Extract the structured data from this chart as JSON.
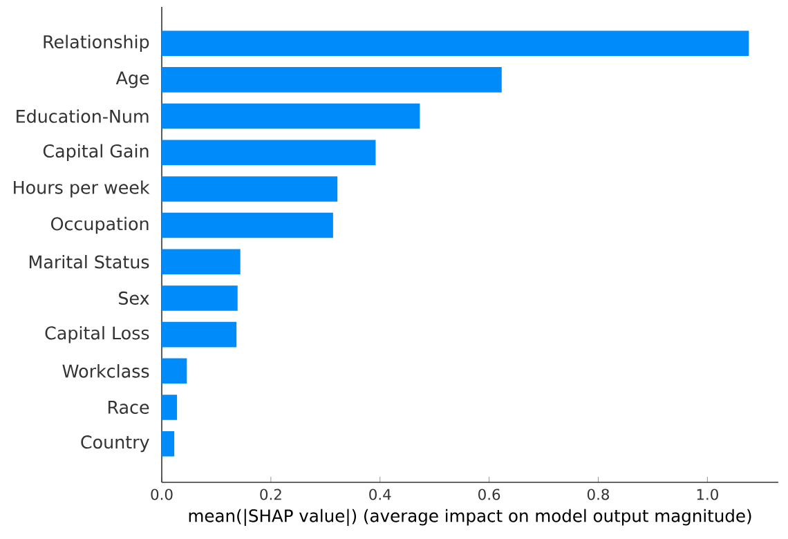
{
  "chart_data": {
    "type": "bar",
    "orientation": "horizontal",
    "xlabel": "mean(|SHAP value|) (average impact on model output magnitude)",
    "categories": [
      "Relationship",
      "Age",
      "Education-Num",
      "Capital Gain",
      "Hours per week",
      "Occupation",
      "Marital Status",
      "Sex",
      "Capital Loss",
      "Workclass",
      "Race",
      "Country"
    ],
    "values": [
      1.076,
      0.623,
      0.473,
      0.392,
      0.322,
      0.314,
      0.144,
      0.139,
      0.137,
      0.046,
      0.028,
      0.023
    ],
    "color": "#008bfb",
    "xlim": [
      0,
      1.13
    ],
    "xticks": [
      {
        "value": 0,
        "label": "0.0"
      },
      {
        "value": 0.2,
        "label": "0.2"
      },
      {
        "value": 0.4,
        "label": "0.4"
      },
      {
        "value": 0.6,
        "label": "0.6"
      },
      {
        "value": 0.8,
        "label": "0.8"
      },
      {
        "value": 1.0,
        "label": "1.0"
      }
    ]
  }
}
